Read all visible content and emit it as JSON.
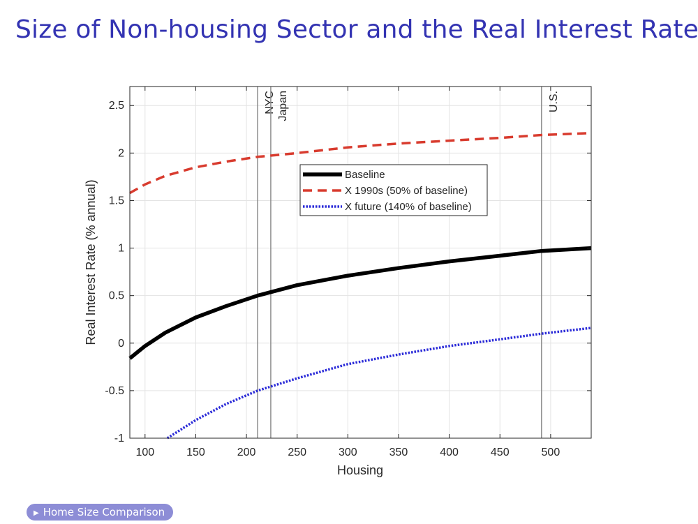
{
  "slide": {
    "title": "Size of Non-housing Sector and the Real Interest Rate",
    "nav_button": "Home Size Comparison",
    "nav_icon": "triangle-right-icon"
  },
  "colors": {
    "title": "#3333b2",
    "baseline": "#000000",
    "x1990s": "#d83b2e",
    "xfuture": "#2b2bd8",
    "button_bg": "#8d8dd6"
  },
  "chart_data": {
    "type": "line",
    "title": "",
    "xlabel": "Housing",
    "ylabel": "Real Interest Rate (% annual)",
    "xlim": [
      85,
      540
    ],
    "ylim": [
      -1,
      2.7
    ],
    "xticks": [
      100,
      150,
      200,
      250,
      300,
      350,
      400,
      450,
      500
    ],
    "yticks": [
      -1,
      -0.5,
      0,
      0.5,
      1,
      1.5,
      2,
      2.5
    ],
    "ytick_labels": [
      "-1",
      "-0.5",
      "0",
      "0.5",
      "1",
      "1.5",
      "2",
      "2.5"
    ],
    "grid": true,
    "legend_position": "upper-center",
    "series": [
      {
        "name": "Baseline",
        "style": "solid",
        "x": [
          85,
          100,
          120,
          150,
          180,
          211,
          250,
          300,
          350,
          400,
          450,
          491,
          540
        ],
        "y": [
          -0.16,
          -0.03,
          0.11,
          0.27,
          0.39,
          0.5,
          0.61,
          0.71,
          0.79,
          0.86,
          0.92,
          0.97,
          1.0
        ]
      },
      {
        "name": "X 1990s (50% of baseline)",
        "style": "dashed",
        "x": [
          85,
          100,
          120,
          150,
          180,
          211,
          250,
          300,
          350,
          400,
          450,
          491,
          540
        ],
        "y": [
          1.58,
          1.67,
          1.76,
          1.85,
          1.91,
          1.96,
          2.0,
          2.06,
          2.1,
          2.13,
          2.16,
          2.19,
          2.21
        ]
      },
      {
        "name": "X future (140% of baseline)",
        "style": "dotted",
        "x": [
          122,
          150,
          180,
          211,
          250,
          300,
          350,
          400,
          450,
          491,
          540
        ],
        "y": [
          -1.0,
          -0.81,
          -0.64,
          -0.5,
          -0.37,
          -0.22,
          -0.12,
          -0.03,
          0.04,
          0.1,
          0.16
        ]
      }
    ],
    "vlines": [
      {
        "x": 211,
        "label": "NYC"
      },
      {
        "x": 224,
        "label": "Japan"
      },
      {
        "x": 491,
        "label": "U.S."
      }
    ]
  }
}
